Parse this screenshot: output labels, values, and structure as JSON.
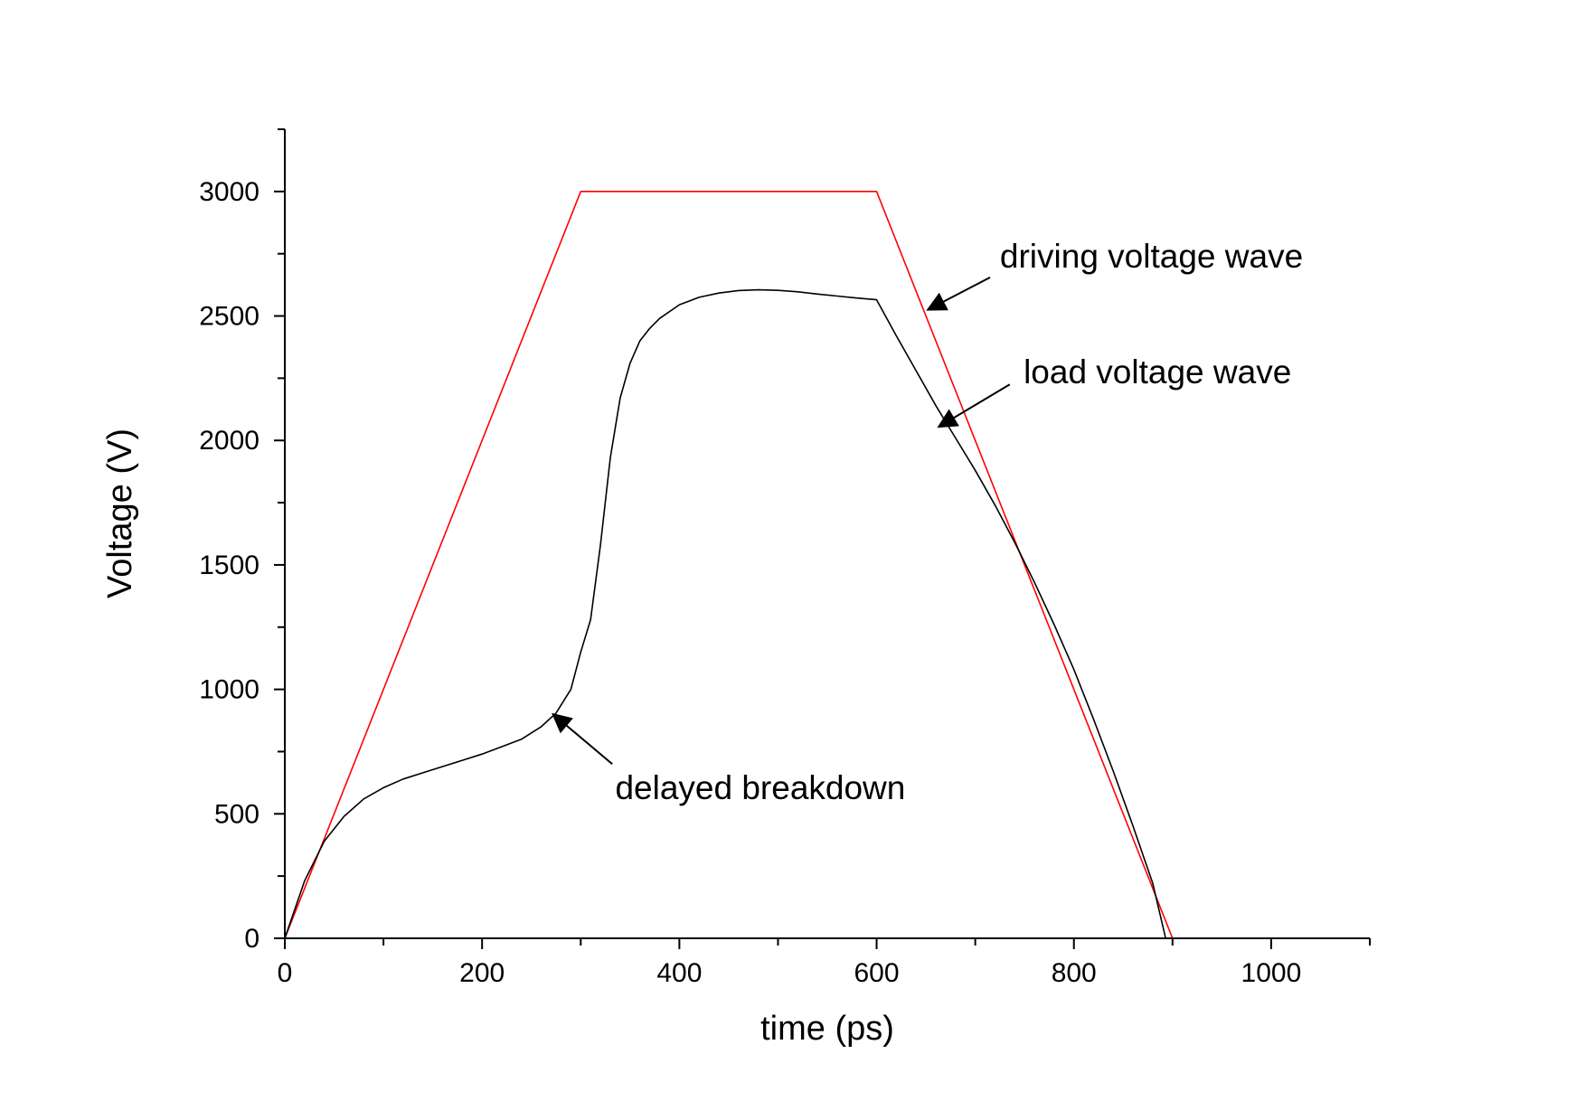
{
  "chart_data": {
    "type": "line",
    "xlabel": "time (ps)",
    "ylabel": "Voltage (V)",
    "xlim": [
      0,
      1100
    ],
    "ylim": [
      0,
      3250
    ],
    "x_ticks": [
      0,
      200,
      400,
      600,
      800,
      1000
    ],
    "x_tick_labels": [
      "0",
      "200",
      "400",
      "600",
      "800",
      "1000"
    ],
    "x_minor_step": 100,
    "y_ticks": [
      0,
      500,
      1000,
      1500,
      2000,
      2500,
      3000
    ],
    "y_tick_labels": [
      "0",
      "500",
      "1000",
      "1500",
      "2000",
      "2500",
      "3000"
    ],
    "y_minor_step": 250,
    "grid": false,
    "series": [
      {
        "color": "#ff0000",
        "x": [
          0,
          300,
          600,
          900,
          1000
        ],
        "y": [
          0,
          3000,
          3000,
          0,
          0
        ]
      },
      {
        "color": "#000000",
        "x": [
          0,
          20,
          40,
          60,
          80,
          100,
          120,
          140,
          160,
          180,
          200,
          220,
          240,
          260,
          275,
          290,
          300,
          310,
          320,
          330,
          340,
          350,
          360,
          370,
          380,
          400,
          420,
          440,
          460,
          480,
          500,
          520,
          540,
          560,
          580,
          600,
          620,
          640,
          660,
          680,
          700,
          720,
          740,
          760,
          780,
          800,
          820,
          840,
          860,
          880,
          893
        ],
        "y": [
          0,
          230,
          390,
          490,
          560,
          605,
          640,
          665,
          690,
          715,
          740,
          770,
          800,
          850,
          905,
          1000,
          1150,
          1280,
          1580,
          1930,
          2170,
          2310,
          2400,
          2450,
          2490,
          2545,
          2575,
          2592,
          2602,
          2605,
          2603,
          2597,
          2588,
          2580,
          2572,
          2565,
          2420,
          2280,
          2140,
          2010,
          1880,
          1740,
          1590,
          1430,
          1260,
          1080,
          880,
          670,
          450,
          220,
          0
        ]
      }
    ],
    "annotations": [
      {
        "text": "driving voltage wave",
        "label_at": [
          725,
          2695
        ],
        "arrow_from": [
          715,
          2655
        ],
        "arrow_to": [
          652,
          2525
        ]
      },
      {
        "text": "load voltage wave",
        "label_at": [
          749,
          2230
        ],
        "arrow_from": [
          735,
          2225
        ],
        "arrow_to": [
          663,
          2055
        ]
      },
      {
        "text": "delayed breakdown",
        "label_at": [
          335,
          560
        ],
        "arrow_from": [
          332,
          700
        ],
        "arrow_to": [
          272,
          900
        ]
      }
    ]
  }
}
